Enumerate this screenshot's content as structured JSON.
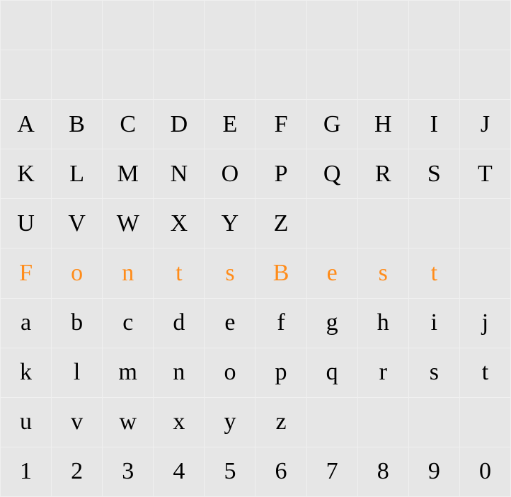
{
  "grid": {
    "columns": 10,
    "rows": 10,
    "background_color": "#e6e6e6",
    "grid_line_color": "#f0f0f0",
    "font_family": "Century Schoolbook serif",
    "font_size": 34,
    "text_color": "#000000",
    "accent_color": "#ff8c1a",
    "cells": [
      [
        "",
        "",
        "",
        "",
        "",
        "",
        "",
        "",
        "",
        ""
      ],
      [
        "",
        "",
        "",
        "",
        "",
        "",
        "",
        "",
        "",
        ""
      ],
      [
        "A",
        "B",
        "C",
        "D",
        "E",
        "F",
        "G",
        "H",
        "I",
        "J"
      ],
      [
        "K",
        "L",
        "M",
        "N",
        "O",
        "P",
        "Q",
        "R",
        "S",
        "T"
      ],
      [
        "U",
        "V",
        "W",
        "X",
        "Y",
        "Z",
        "",
        "",
        "",
        ""
      ],
      [
        "F",
        "o",
        "n",
        "t",
        "s",
        "B",
        "e",
        "s",
        "t",
        ""
      ],
      [
        "a",
        "b",
        "c",
        "d",
        "e",
        "f",
        "g",
        "h",
        "i",
        "j"
      ],
      [
        "k",
        "l",
        "m",
        "n",
        "o",
        "p",
        "q",
        "r",
        "s",
        "t"
      ],
      [
        "u",
        "v",
        "w",
        "x",
        "y",
        "z",
        "",
        "",
        "",
        ""
      ],
      [
        "1",
        "2",
        "3",
        "4",
        "5",
        "6",
        "7",
        "8",
        "9",
        "0"
      ]
    ],
    "accent_row_index": 5
  }
}
